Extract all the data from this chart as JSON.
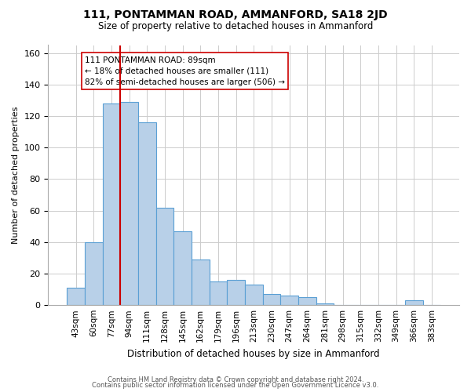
{
  "title": "111, PONTAMMAN ROAD, AMMANFORD, SA18 2JD",
  "subtitle": "Size of property relative to detached houses in Ammanford",
  "xlabel": "Distribution of detached houses by size in Ammanford",
  "ylabel": "Number of detached properties",
  "bar_labels": [
    "43sqm",
    "60sqm",
    "77sqm",
    "94sqm",
    "111sqm",
    "128sqm",
    "145sqm",
    "162sqm",
    "179sqm",
    "196sqm",
    "213sqm",
    "230sqm",
    "247sqm",
    "264sqm",
    "281sqm",
    "298sqm",
    "315sqm",
    "332sqm",
    "349sqm",
    "366sqm",
    "383sqm"
  ],
  "bar_values": [
    11,
    40,
    128,
    129,
    116,
    62,
    47,
    29,
    15,
    16,
    13,
    7,
    6,
    5,
    1,
    0,
    0,
    0,
    0,
    3,
    0
  ],
  "bar_color": "#b8d0e8",
  "bar_edge_color": "#5a9fd4",
  "vline_x": 2.5,
  "vline_color": "#cc0000",
  "annotation_text": "111 PONTAMMAN ROAD: 89sqm\n← 18% of detached houses are smaller (111)\n82% of semi-detached houses are larger (506) →",
  "annotation_box_color": "#ffffff",
  "annotation_box_edge": "#cc0000",
  "ylim": [
    0,
    165
  ],
  "yticks": [
    0,
    20,
    40,
    60,
    80,
    100,
    120,
    140,
    160
  ],
  "footer1": "Contains HM Land Registry data © Crown copyright and database right 2024.",
  "footer2": "Contains public sector information licensed under the Open Government Licence v3.0.",
  "background_color": "#ffffff",
  "grid_color": "#cccccc"
}
